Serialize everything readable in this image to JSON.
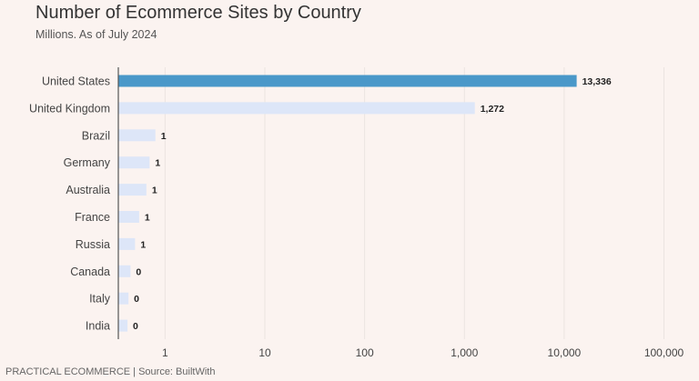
{
  "chart_data": {
    "type": "bar",
    "orientation": "horizontal",
    "title": "Number of Ecommerce Sites by Country",
    "subtitle": "Millions. As of July 2024",
    "categories": [
      "United States",
      "United Kingdom",
      "Brazil",
      "Germany",
      "Australia",
      "France",
      "Russia",
      "Canada",
      "Italy",
      "India"
    ],
    "values": [
      13336,
      1272,
      0.8,
      0.7,
      0.65,
      0.55,
      0.5,
      0.45,
      0.43,
      0.42
    ],
    "value_labels": [
      "13,336",
      "1,272",
      "1",
      "1",
      "1",
      "1",
      "1",
      "0",
      "0",
      "0"
    ],
    "x_scale": "log",
    "xlim": [
      0.34,
      130000
    ],
    "x_ticks": [
      1,
      10,
      100,
      1000,
      10000,
      100000
    ],
    "x_tick_labels": [
      "1",
      "10",
      "100",
      "1,000",
      "10,000",
      "100,000"
    ],
    "grid": true,
    "highlight_color": "#4a98c9",
    "bar_color": "#dde6f8",
    "grid_color": "#ebe4e1",
    "axis_color": "#555555"
  },
  "footer": "PRACTICAL ECOMMERCE | Source:  BuiltWith"
}
